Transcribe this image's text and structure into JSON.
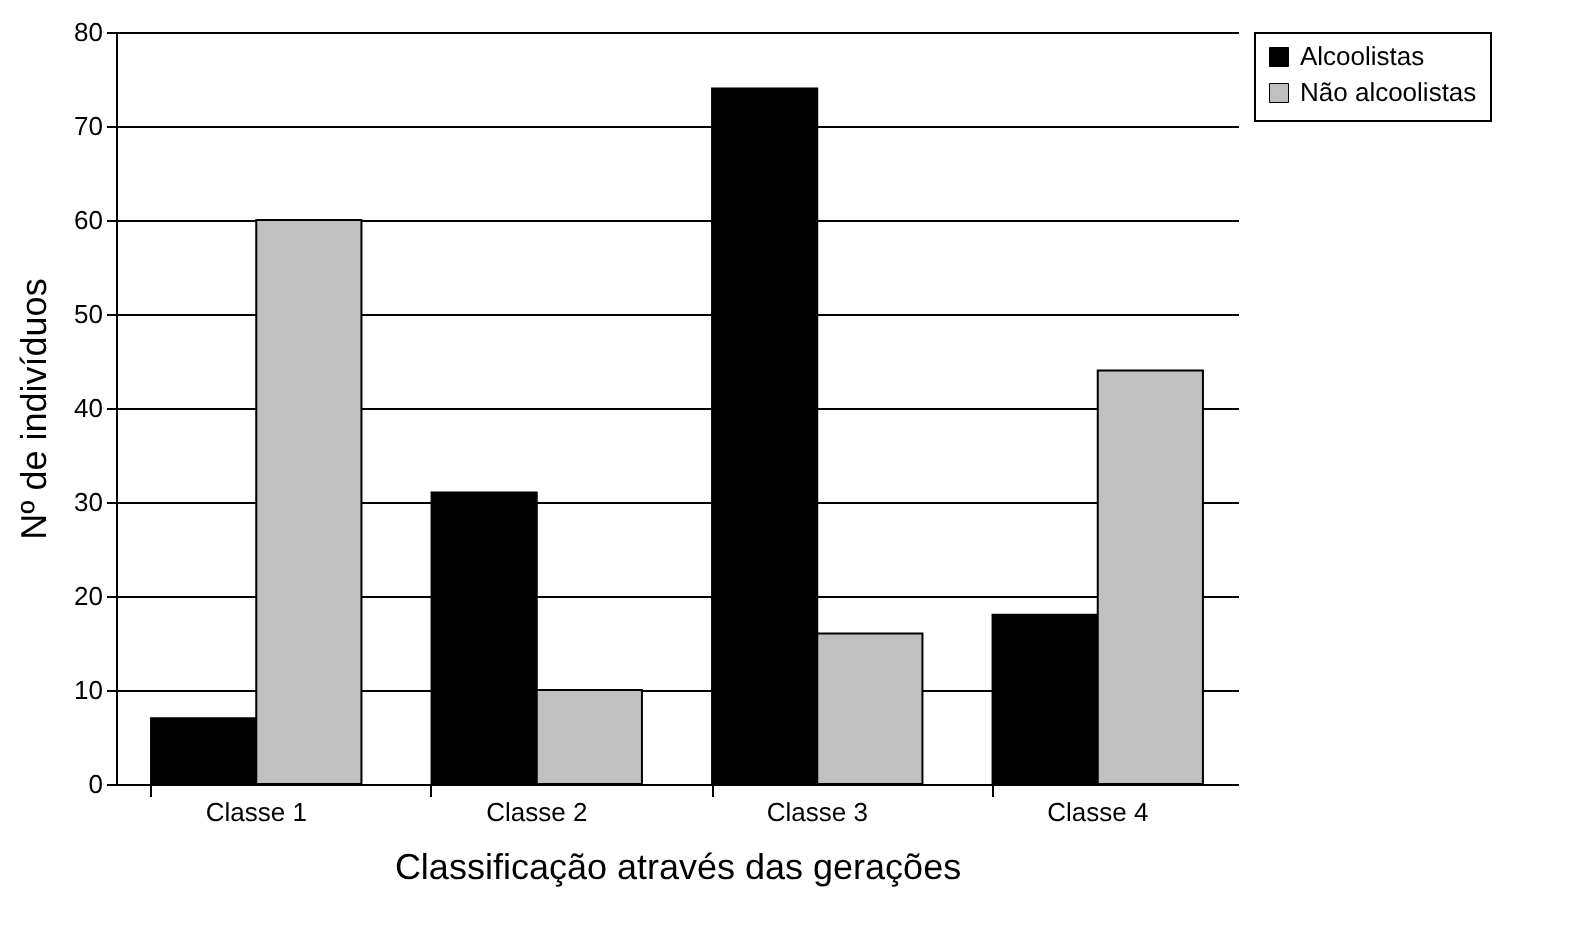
{
  "chart_data": {
    "type": "bar",
    "xlabel": "Classificação através das gerações",
    "ylabel": "Nº de indivíduos",
    "categories": [
      "Classe 1",
      "Classe 2",
      "Classe 3",
      "Classe 4"
    ],
    "series": [
      {
        "name": "Alcoolistas",
        "color": "#000000",
        "values": [
          7,
          31,
          74,
          18
        ]
      },
      {
        "name": "Não alcoolistas",
        "color": "#c0c0c0",
        "values": [
          60,
          10,
          16,
          44
        ]
      }
    ],
    "ylim": [
      0,
      80
    ],
    "yticks": [
      0,
      10,
      20,
      30,
      40,
      50,
      60,
      70,
      80
    ],
    "grid": "y",
    "legend": "right"
  }
}
